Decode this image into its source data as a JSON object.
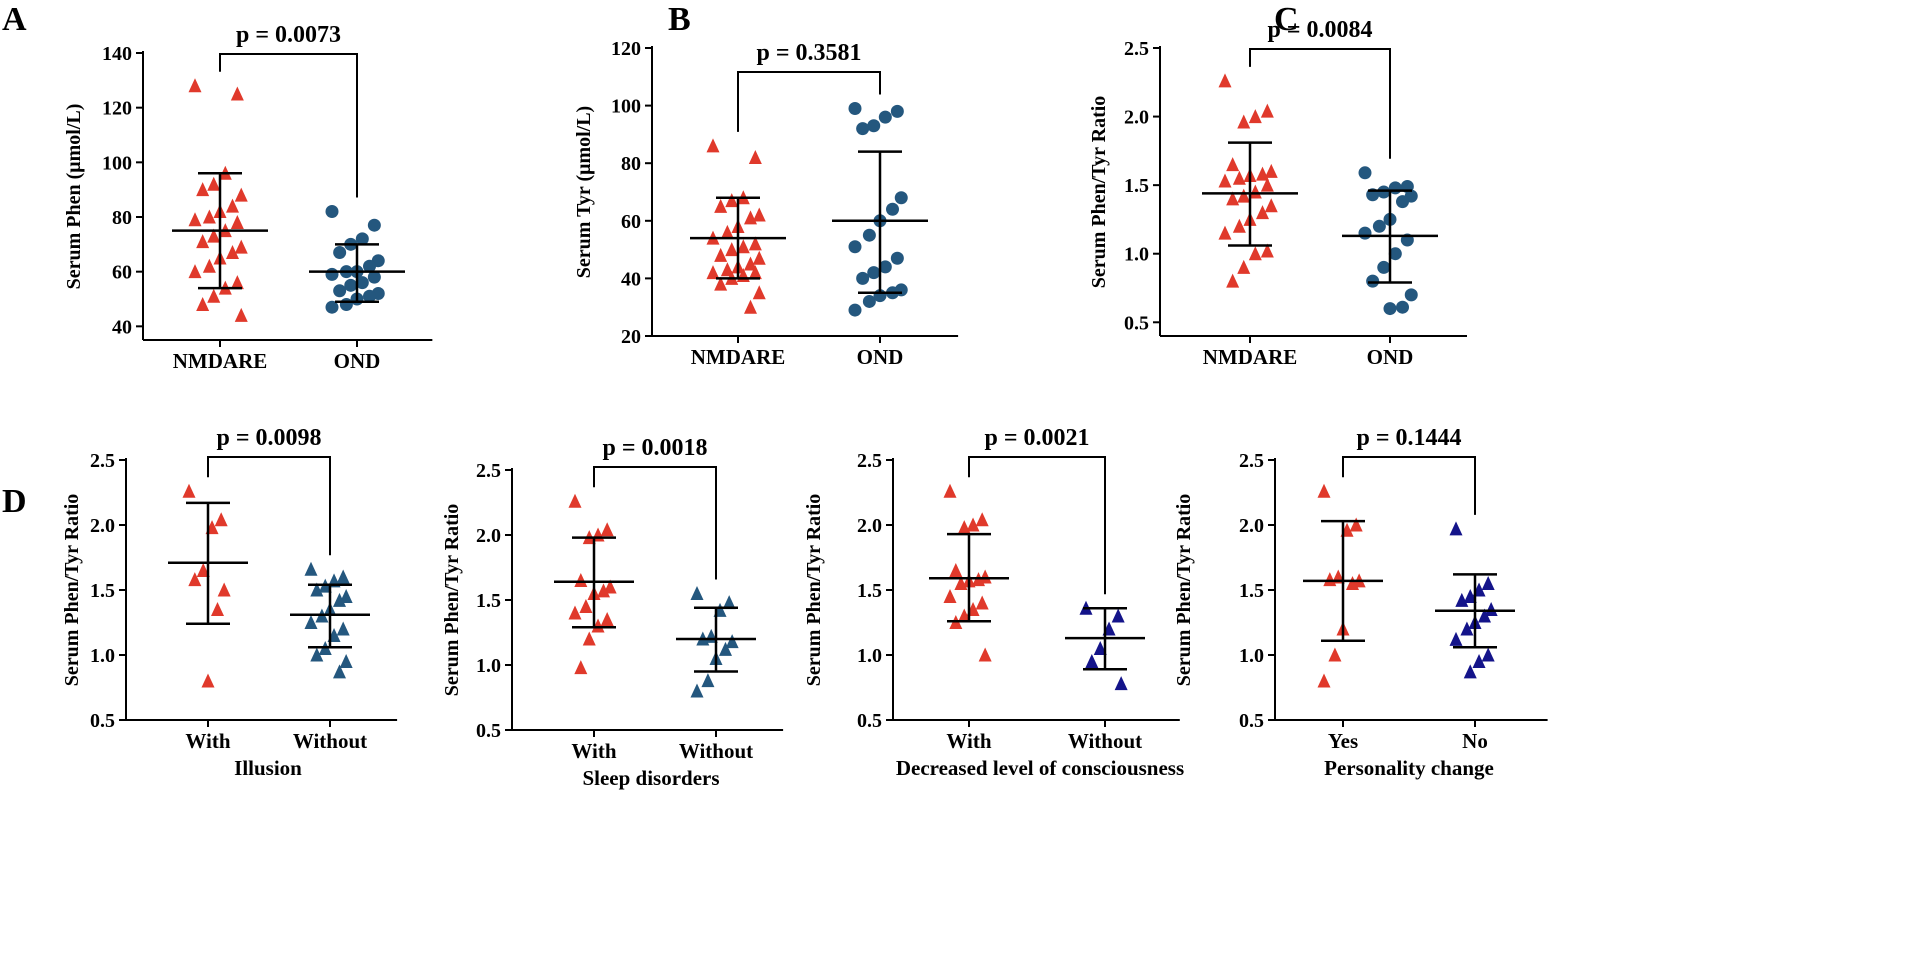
{
  "colors": {
    "nmdare": "#e0392b",
    "ond": "#24577e",
    "navy": "#14148a",
    "axis": "#000000"
  },
  "panels": [
    "A",
    "B",
    "C",
    "D"
  ],
  "chart_data": [
    {
      "id": "A",
      "type": "scatter",
      "title": "",
      "ylabel": "Serum Phen (μmol/L)",
      "xlabel": "",
      "ylim": [
        35,
        140
      ],
      "yticks": [
        40,
        60,
        80,
        100,
        120,
        140
      ],
      "categories": [
        "NMDARE",
        "OND"
      ],
      "p_value": "p = 0.0073",
      "series": [
        {
          "name": "NMDARE",
          "marker": "triangle",
          "color": "#e0392b",
          "mean": 75,
          "sd_low": 54,
          "sd_high": 96,
          "values": [
            128,
            125,
            96,
            92,
            90,
            88,
            84,
            82,
            80,
            79,
            78,
            75,
            73,
            71,
            69,
            67,
            65,
            62,
            60,
            56,
            54,
            51,
            48,
            44
          ]
        },
        {
          "name": "OND",
          "marker": "circle",
          "color": "#24577e",
          "mean": 60,
          "sd_low": 49,
          "sd_high": 70,
          "values": [
            82,
            77,
            72,
            70,
            67,
            64,
            62,
            60,
            60,
            59,
            58,
            56,
            55,
            53,
            52,
            51,
            50,
            48,
            47
          ]
        }
      ]
    },
    {
      "id": "B",
      "type": "scatter",
      "title": "",
      "ylabel": "Serum Tyr (μmol/L)",
      "xlabel": "",
      "ylim": [
        20,
        120
      ],
      "yticks": [
        20,
        40,
        60,
        80,
        100,
        120
      ],
      "categories": [
        "NMDARE",
        "OND"
      ],
      "p_value": "p = 0.3581",
      "series": [
        {
          "name": "NMDARE",
          "marker": "triangle",
          "color": "#e0392b",
          "mean": 54,
          "sd_low": 40,
          "sd_high": 68,
          "values": [
            86,
            82,
            68,
            67,
            65,
            62,
            61,
            58,
            56,
            54,
            52,
            51,
            50,
            48,
            47,
            45,
            44,
            43,
            42,
            42,
            41,
            40,
            38,
            35,
            30
          ]
        },
        {
          "name": "OND",
          "marker": "circle",
          "color": "#24577e",
          "mean": 60,
          "sd_low": 35,
          "sd_high": 84,
          "values": [
            99,
            98,
            96,
            93,
            92,
            68,
            64,
            60,
            55,
            51,
            47,
            44,
            42,
            40,
            36,
            35,
            34,
            32,
            29
          ]
        }
      ]
    },
    {
      "id": "C",
      "type": "scatter",
      "title": "",
      "ylabel": "Serum Phen/Tyr  Ratio",
      "xlabel": "",
      "ylim": [
        0.4,
        2.5
      ],
      "yticks": [
        0.5,
        1.0,
        1.5,
        2.0,
        2.5
      ],
      "categories": [
        "NMDARE",
        "OND"
      ],
      "p_value": "p = 0.0084",
      "series": [
        {
          "name": "NMDARE",
          "marker": "triangle",
          "color": "#e0392b",
          "mean": 1.44,
          "sd_low": 1.06,
          "sd_high": 1.81,
          "values": [
            2.26,
            2.04,
            2.0,
            1.96,
            1.65,
            1.6,
            1.58,
            1.57,
            1.55,
            1.53,
            1.5,
            1.45,
            1.42,
            1.4,
            1.35,
            1.3,
            1.25,
            1.2,
            1.15,
            1.02,
            1.0,
            0.9,
            0.8
          ]
        },
        {
          "name": "OND",
          "marker": "circle",
          "color": "#24577e",
          "mean": 1.13,
          "sd_low": 0.79,
          "sd_high": 1.46,
          "values": [
            1.59,
            1.49,
            1.48,
            1.45,
            1.43,
            1.42,
            1.38,
            1.25,
            1.2,
            1.15,
            1.1,
            1.0,
            0.9,
            0.8,
            0.7,
            0.61,
            0.6
          ]
        }
      ]
    },
    {
      "id": "D1",
      "type": "scatter",
      "title": "",
      "ylabel": "Serum Phen/Tyr  Ratio",
      "xlabel": "Illusion",
      "ylim": [
        0.5,
        2.5
      ],
      "yticks": [
        0.5,
        1.0,
        1.5,
        2.0,
        2.5
      ],
      "categories": [
        "With",
        "Without"
      ],
      "p_value": "p = 0.0098",
      "series": [
        {
          "name": "With",
          "marker": "triangle",
          "color": "#e0392b",
          "mean": 1.71,
          "sd_low": 1.24,
          "sd_high": 2.17,
          "values": [
            2.26,
            2.04,
            1.98,
            1.65,
            1.58,
            1.5,
            1.35,
            0.8
          ]
        },
        {
          "name": "Without",
          "marker": "triangle",
          "color": "#24577e",
          "mean": 1.31,
          "sd_low": 1.06,
          "sd_high": 1.54,
          "values": [
            1.66,
            1.6,
            1.57,
            1.53,
            1.5,
            1.45,
            1.42,
            1.35,
            1.3,
            1.25,
            1.2,
            1.15,
            1.05,
            1.0,
            0.95,
            0.87
          ]
        }
      ]
    },
    {
      "id": "D2",
      "type": "scatter",
      "title": "",
      "ylabel": "Serum Phen/Tyr  Ratio",
      "xlabel": "Sleep disorders",
      "ylim": [
        0.5,
        2.5
      ],
      "yticks": [
        0.5,
        1.0,
        1.5,
        2.0,
        2.5
      ],
      "categories": [
        "With",
        "Without"
      ],
      "p_value": "p = 0.0018",
      "series": [
        {
          "name": "With",
          "marker": "triangle",
          "color": "#e0392b",
          "mean": 1.64,
          "sd_low": 1.29,
          "sd_high": 1.98,
          "values": [
            2.26,
            2.04,
            2.0,
            1.98,
            1.65,
            1.6,
            1.57,
            1.55,
            1.45,
            1.4,
            1.35,
            1.3,
            1.2,
            0.98
          ]
        },
        {
          "name": "Without",
          "marker": "triangle",
          "color": "#24577e",
          "mean": 1.2,
          "sd_low": 0.95,
          "sd_high": 1.44,
          "values": [
            1.55,
            1.48,
            1.42,
            1.22,
            1.2,
            1.18,
            1.12,
            1.05,
            0.88,
            0.8
          ]
        }
      ]
    },
    {
      "id": "D3",
      "type": "scatter",
      "title": "",
      "ylabel": "Serum Phen/Tyr  Ratio",
      "xlabel": "Decreased level of consciousness",
      "ylim": [
        0.5,
        2.5
      ],
      "yticks": [
        0.5,
        1.0,
        1.5,
        2.0,
        2.5
      ],
      "categories": [
        "With",
        "Without"
      ],
      "p_value": "p = 0.0021",
      "series": [
        {
          "name": "With",
          "marker": "triangle",
          "color": "#e0392b",
          "mean": 1.59,
          "sd_low": 1.26,
          "sd_high": 1.93,
          "values": [
            2.26,
            2.04,
            2.0,
            1.98,
            1.65,
            1.6,
            1.58,
            1.57,
            1.55,
            1.45,
            1.4,
            1.35,
            1.3,
            1.25,
            1.0
          ]
        },
        {
          "name": "Without",
          "marker": "triangle",
          "color": "navy",
          "mean": 1.13,
          "sd_low": 0.89,
          "sd_high": 1.36,
          "values": [
            1.36,
            1.3,
            1.2,
            1.05,
            0.95,
            0.78
          ]
        }
      ]
    },
    {
      "id": "D4",
      "type": "scatter",
      "title": "",
      "ylabel": "Serum Phen/Tyr  Ratio",
      "xlabel": "Personality change",
      "ylim": [
        0.5,
        2.5
      ],
      "yticks": [
        0.5,
        1.0,
        1.5,
        2.0,
        2.5
      ],
      "categories": [
        "Yes",
        "No"
      ],
      "p_value": "p = 0.1444",
      "series": [
        {
          "name": "Yes",
          "marker": "triangle",
          "color": "#e0392b",
          "mean": 1.57,
          "sd_low": 1.11,
          "sd_high": 2.03,
          "values": [
            2.26,
            2.0,
            1.96,
            1.6,
            1.58,
            1.57,
            1.55,
            1.2,
            1.0,
            0.8
          ]
        },
        {
          "name": "No",
          "marker": "triangle",
          "color": "navy",
          "mean": 1.34,
          "sd_low": 1.06,
          "sd_high": 1.62,
          "values": [
            1.97,
            1.55,
            1.5,
            1.45,
            1.42,
            1.35,
            1.3,
            1.25,
            1.2,
            1.12,
            1.0,
            0.95,
            0.87
          ]
        }
      ]
    }
  ]
}
